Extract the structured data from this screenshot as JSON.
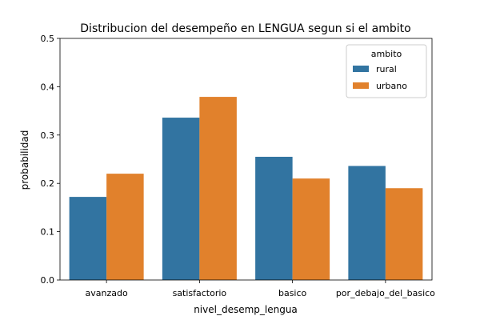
{
  "chart_data": {
    "type": "bar",
    "title": "Distribucion del desempeño en LENGUA segun si el ambito",
    "xlabel": "nivel_desemp_lengua",
    "ylabel": "probabilidad",
    "categories": [
      "avanzado",
      "satisfactorio",
      "basico",
      "por_debajo_del_basico"
    ],
    "ylim": [
      0,
      0.5
    ],
    "yticks": [
      "0.0",
      "0.1",
      "0.2",
      "0.3",
      "0.4",
      "0.5"
    ],
    "grid": false,
    "legend": {
      "title": "ambito",
      "placement": "top-right"
    },
    "series": [
      {
        "name": "rural",
        "color": "#3274a1",
        "values": [
          0.172,
          0.336,
          0.255,
          0.236
        ]
      },
      {
        "name": "urbano",
        "color": "#e1812c",
        "values": [
          0.22,
          0.379,
          0.21,
          0.19
        ]
      }
    ]
  }
}
